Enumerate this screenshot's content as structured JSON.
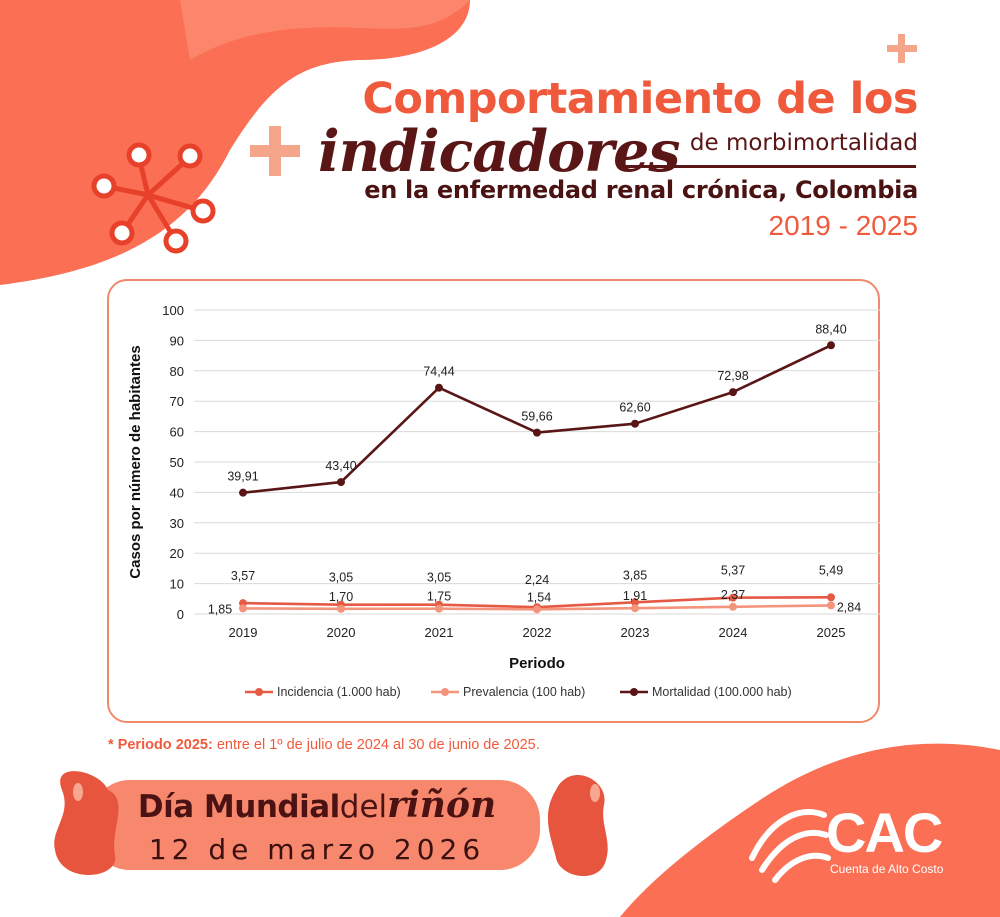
{
  "header": {
    "line1": "Comportamiento de los",
    "line2": "indicadores",
    "line2b": "de morbimortalidad",
    "line3": "en la enfermedad renal crónica, Colombia",
    "years": "2019 - 2025"
  },
  "chart_data": {
    "type": "line",
    "x": [
      "2019",
      "2020",
      "2021",
      "2022",
      "2023",
      "2024",
      "2025"
    ],
    "xlabel": "Periodo",
    "ylabel": "Casos por número de habitantes",
    "ylim": [
      0,
      100
    ],
    "yticks": [
      0,
      10,
      20,
      30,
      40,
      50,
      60,
      70,
      80,
      90,
      100
    ],
    "grid": true,
    "legend_position": "bottom",
    "series": [
      {
        "name": "Incidencia (1.000 hab)",
        "color": "#e55a45",
        "values": [
          3.57,
          3.05,
          3.05,
          2.24,
          3.85,
          5.37,
          5.49
        ],
        "labels": [
          "3,57",
          "3,05",
          "3,05",
          "2,24",
          "3,85",
          "5,37",
          "5,49"
        ]
      },
      {
        "name": "Prevalencia (100 hab)",
        "color": "#f4947c",
        "values": [
          1.85,
          1.7,
          1.75,
          1.54,
          1.91,
          2.37,
          2.84
        ],
        "labels": [
          "1,85",
          "1,70",
          "1,75",
          "1,54",
          "1,91",
          "2,37",
          "2,84"
        ]
      },
      {
        "name": "Mortalidad (100.000 hab)",
        "color": "#5a1616",
        "values": [
          39.91,
          43.4,
          74.44,
          59.66,
          62.6,
          72.98,
          88.4
        ],
        "labels": [
          "39,91",
          "43,40",
          "74,44",
          "59,66",
          "62,60",
          "72,98",
          "88,40"
        ]
      }
    ]
  },
  "footnote": {
    "marker": "*",
    "bold": "Periodo 2025:",
    "text": "entre el 1º de julio de 2024 al 30 de junio de 2025."
  },
  "banner": {
    "part1": "Día Mundial",
    "part2": "del",
    "part3": "riñón",
    "date": "12 de marzo 2026"
  },
  "logo": {
    "name": "CAC",
    "subtitle": "Cuenta de Alto Costo"
  },
  "colors": {
    "accent": "#f05a3c",
    "dark": "#5a1616",
    "light": "#f4947c"
  }
}
